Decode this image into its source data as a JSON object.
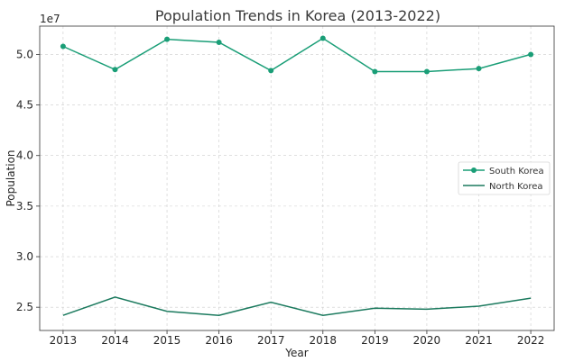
{
  "chart_data": {
    "type": "line",
    "title": "Population Trends in Korea (2013-2022)",
    "xlabel": "Year",
    "ylabel": "Population",
    "y_offset_label": "1e7",
    "x": [
      2013,
      2014,
      2015,
      2016,
      2017,
      2018,
      2019,
      2020,
      2021,
      2022
    ],
    "x_tick_labels": [
      "2013",
      "2014",
      "2015",
      "2016",
      "2017",
      "2018",
      "2019",
      "2020",
      "2021",
      "2022"
    ],
    "y_tick_values": [
      2.5,
      3.0,
      3.5,
      4.0,
      4.5,
      5.0
    ],
    "y_tick_labels": [
      "2.5",
      "3.0",
      "3.5",
      "4.0",
      "4.5",
      "5.0"
    ],
    "ylim": [
      2.27,
      5.28
    ],
    "xlim": [
      2012.55,
      2022.45
    ],
    "grid": true,
    "legend_position": "center-right",
    "series": [
      {
        "name": "South Korea",
        "color": "#1a9e77",
        "marker": true,
        "values": [
          5.08,
          4.85,
          5.15,
          5.12,
          4.84,
          5.16,
          4.83,
          4.83,
          4.86,
          5.0
        ]
      },
      {
        "name": "North Korea",
        "color": "#1b7a5e",
        "marker": false,
        "values": [
          2.42,
          2.6,
          2.46,
          2.42,
          2.55,
          2.42,
          2.49,
          2.48,
          2.51,
          2.59
        ]
      }
    ]
  }
}
